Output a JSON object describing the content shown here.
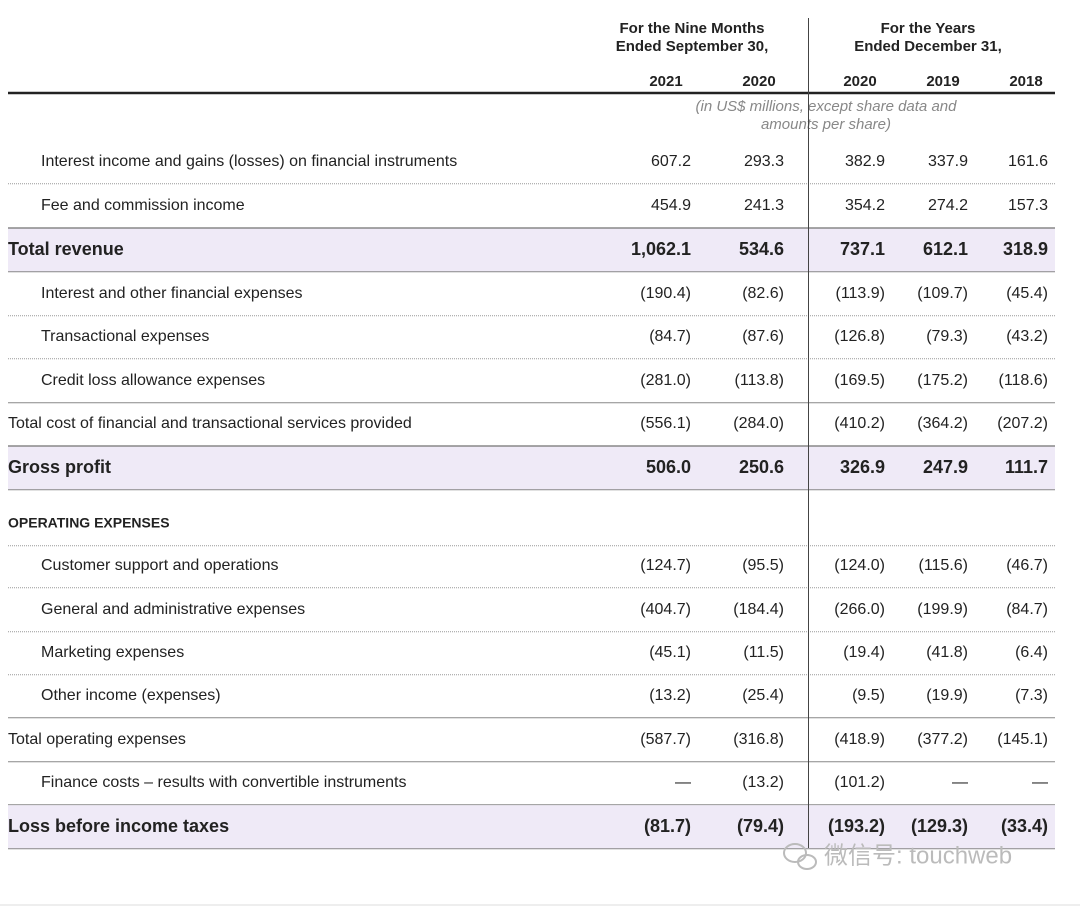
{
  "header": {
    "column_groups": [
      {
        "lines": [
          "For the Nine Months",
          "Ended September 30,"
        ]
      },
      {
        "lines": [
          "For the Years",
          "Ended December 31,"
        ]
      }
    ],
    "years": [
      "2021",
      "2020",
      "2020",
      "2019",
      "2018"
    ],
    "note": [
      "(in US$ millions, except share data and",
      "amounts per share)"
    ]
  },
  "table": {
    "rows": [
      {
        "label": "Interest income and gains (losses) on financial instruments",
        "values": [
          "607.2",
          "293.3",
          "382.9",
          "337.9",
          "161.6"
        ]
      },
      {
        "label": "Fee and commission income",
        "values": [
          "454.9",
          "241.3",
          "354.2",
          "274.2",
          "157.3"
        ]
      },
      {
        "label": "Total revenue",
        "values": [
          "1,062.1",
          "534.6",
          "737.1",
          "612.1",
          "318.9"
        ]
      },
      {
        "label": "Interest and other financial expenses",
        "values": [
          "(190.4)",
          "(82.6)",
          "(113.9)",
          "(109.7)",
          "(45.4)"
        ]
      },
      {
        "label": "Transactional expenses",
        "values": [
          "(84.7)",
          "(87.6)",
          "(126.8)",
          "(79.3)",
          "(43.2)"
        ]
      },
      {
        "label": "Credit loss allowance expenses",
        "values": [
          "(281.0)",
          "(113.8)",
          "(169.5)",
          "(175.2)",
          "(118.6)"
        ]
      },
      {
        "label": "Total cost of financial and transactional services provided",
        "values": [
          "(556.1)",
          "(284.0)",
          "(410.2)",
          "(364.2)",
          "(207.2)"
        ]
      },
      {
        "label": "Gross profit",
        "values": [
          "506.0",
          "250.6",
          "326.9",
          "247.9",
          "111.7"
        ]
      },
      {
        "label": "OPERATING EXPENSES",
        "values": []
      },
      {
        "label": "Customer support and operations",
        "values": [
          "(124.7)",
          "(95.5)",
          "(124.0)",
          "(115.6)",
          "(46.7)"
        ]
      },
      {
        "label": "General and administrative expenses",
        "values": [
          "(404.7)",
          "(184.4)",
          "(266.0)",
          "(199.9)",
          "(84.7)"
        ]
      },
      {
        "label": "Marketing expenses",
        "values": [
          "(45.1)",
          "(11.5)",
          "(19.4)",
          "(41.8)",
          "(6.4)"
        ]
      },
      {
        "label": "Other income (expenses)",
        "values": [
          "(13.2)",
          "(25.4)",
          "(9.5)",
          "(19.9)",
          "(7.3)"
        ]
      },
      {
        "label": "Total operating expenses",
        "values": [
          "(587.7)",
          "(316.8)",
          "(418.9)",
          "(377.2)",
          "(145.1)"
        ]
      },
      {
        "label": "Finance costs – results with convertible instruments",
        "values": [
          "—",
          "(13.2)",
          "(101.2)",
          "—",
          "—"
        ]
      },
      {
        "label": "Loss before income taxes",
        "values": [
          "(81.7)",
          "(79.4)",
          "(193.2)",
          "(129.3)",
          "(33.4)"
        ]
      }
    ]
  },
  "watermark": "微信号: touchweb"
}
